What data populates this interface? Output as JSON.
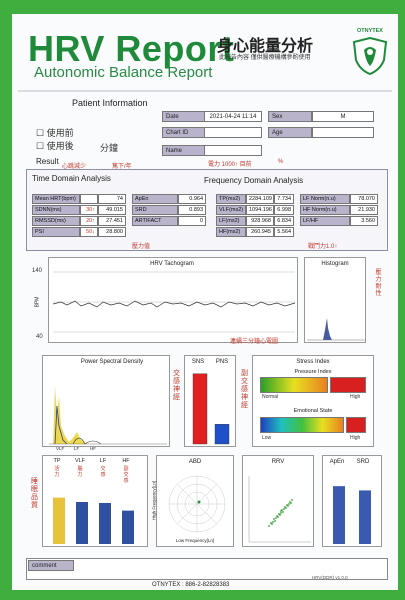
{
  "header": {
    "title": "HRV Report",
    "subtitle": "Autonomic Balance Report",
    "cn_title": "身心能量分析",
    "cn_note": "此報告內容 僅供醫療機構參酌使用",
    "logo_text": "OTNYTEX"
  },
  "patient": {
    "section_title": "Patient Information",
    "before_use": "使用前",
    "after_use": "使用後",
    "minutes": "分鐘",
    "date_label": "Date",
    "date_value": "2021-04-24 11:14",
    "sex_label": "Sex",
    "sex_value": "M",
    "chart_label": "Chart ID",
    "age_label": "Age",
    "name_label": "Name",
    "result_label": "Result",
    "result_note1": "心跳減少",
    "result_note2": "篤下/年",
    "energy_note": "電力 1000↑ 目前",
    "percent": "%"
  },
  "time_domain": {
    "title": "Time Domain Analysis",
    "left": [
      {
        "label": "Mean HRT(bpm)",
        "value": "74",
        "mark": ""
      },
      {
        "label": "SDNN(ms)",
        "value": "49.015",
        "mark": "30↑"
      },
      {
        "label": "RMSSD(ms)",
        "value": "27.451",
        "mark": "20↑"
      },
      {
        "label": "PSI",
        "value": "28.800",
        "mark": "50↓"
      }
    ],
    "right": [
      {
        "label": "ApEn",
        "value": "0.964"
      },
      {
        "label": "SRD",
        "value": "0.893"
      },
      {
        "label": "ARTIFACT",
        "value": "0"
      }
    ],
    "stress_note": "壓力值"
  },
  "freq_domain": {
    "title": "Frequency Domain Analysis",
    "left": [
      {
        "label": "TP(ms2)",
        "value": "2284.109",
        "value2": "7.734"
      },
      {
        "label": "VLF(ms2)",
        "value": "1094.196",
        "value2": "6.998"
      },
      {
        "label": "LF(ms2)",
        "value": "928.968",
        "value2": "6.834"
      },
      {
        "label": "HF(ms2)",
        "value": "260.945",
        "value2": "5.564"
      }
    ],
    "right": [
      {
        "label": "LF Norm(n.u)",
        "value": "78.070"
      },
      {
        "label": "HF Norm(n.u)",
        "value": "21.930"
      },
      {
        "label": "LF/HF",
        "value": "3.560"
      }
    ],
    "war_note": "戰鬥力1.0↑"
  },
  "tachogram": {
    "title": "HRV Tachogram",
    "y_label": "BPM",
    "y_top": "140",
    "y_bottom": "40",
    "note": "連續三分鐘心電圖",
    "histogram_title": "Histogram",
    "histogram_note": "壓力耐性"
  },
  "psd": {
    "title": "Power Spectral Density",
    "axis_labels": [
      "VLF",
      "LF",
      "HF"
    ],
    "side_note": "交感神經"
  },
  "sns_pns": {
    "sns_label": "SNS",
    "pns_label": "PNS",
    "sns_value": 0.78,
    "pns_value": 0.22,
    "side_note": "副交感神經",
    "sns_color": "#e02020",
    "pns_color": "#2050c8"
  },
  "stress_index": {
    "title": "Stress Index",
    "pressure_title": "Pressure Index",
    "pressure_low": "Normal",
    "pressure_high": "High",
    "emotional_title": "Emotional State",
    "emotional_low": "Low",
    "emotional_high": "High"
  },
  "bars": {
    "labels": [
      "TP",
      "VLF",
      "LF",
      "HF"
    ],
    "notes": [
      "活力",
      "腦力",
      "交感",
      "副交感"
    ],
    "values": [
      7.734,
      6.998,
      6.834,
      5.564
    ],
    "side_note": "睡眠品質",
    "colors": [
      "#e8c23a",
      "#2f4fa0",
      "#2f4fa0",
      "#2f4fa0"
    ]
  },
  "abd": {
    "title": "ABD",
    "y_label": "High Frequency[Ln]",
    "x_label": "Low Frequency[Ln]"
  },
  "rrv": {
    "title": "RRV"
  },
  "apen_srd": {
    "apen_label": "ApEn",
    "srd_label": "SRD",
    "apen_value": 0.964,
    "srd_value": 0.893
  },
  "footer": {
    "comment_label": "comment",
    "version": "HRV(DDR) v1.0.0",
    "company": "OTNYTEX : 886-2-82828383"
  }
}
